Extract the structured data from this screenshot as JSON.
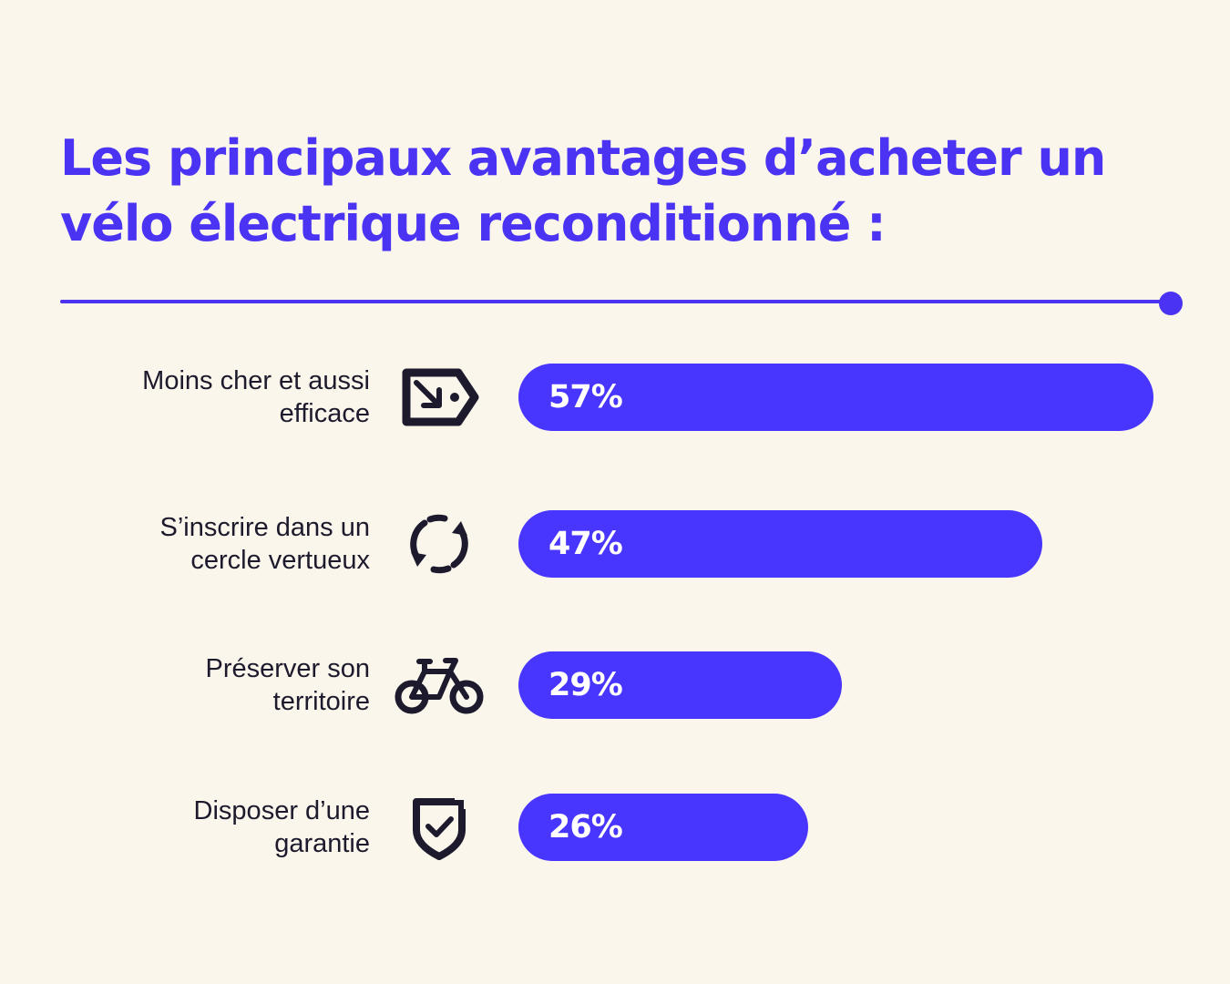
{
  "chart_data": {
    "type": "bar",
    "orientation": "horizontal",
    "title_lines": [
      "Les principaux avantages d’acheter un",
      "vélo électrique reconditionné :"
    ],
    "categories": [
      [
        "Moins cher et aussi",
        "efficace"
      ],
      [
        "S’inscrire dans un",
        "cercle vertueux"
      ],
      [
        "Préserver son",
        "territoire"
      ],
      [
        "Disposer d’une",
        "garantie"
      ]
    ],
    "values": [
      57,
      47,
      29,
      26
    ],
    "value_labels": [
      "57%",
      "47%",
      "29%",
      "26%"
    ],
    "icons": [
      "price-tag-icon",
      "recycle-icon",
      "bicycle-icon",
      "shield-check-icon"
    ],
    "xlim": [
      0,
      57
    ],
    "grid": false,
    "colors": {
      "background": "#FAF6EB",
      "accent": "#4A33F2",
      "bar": "#4836FF",
      "label_text": "#1D1A2E",
      "bar_text": "#FFFFFF"
    }
  }
}
